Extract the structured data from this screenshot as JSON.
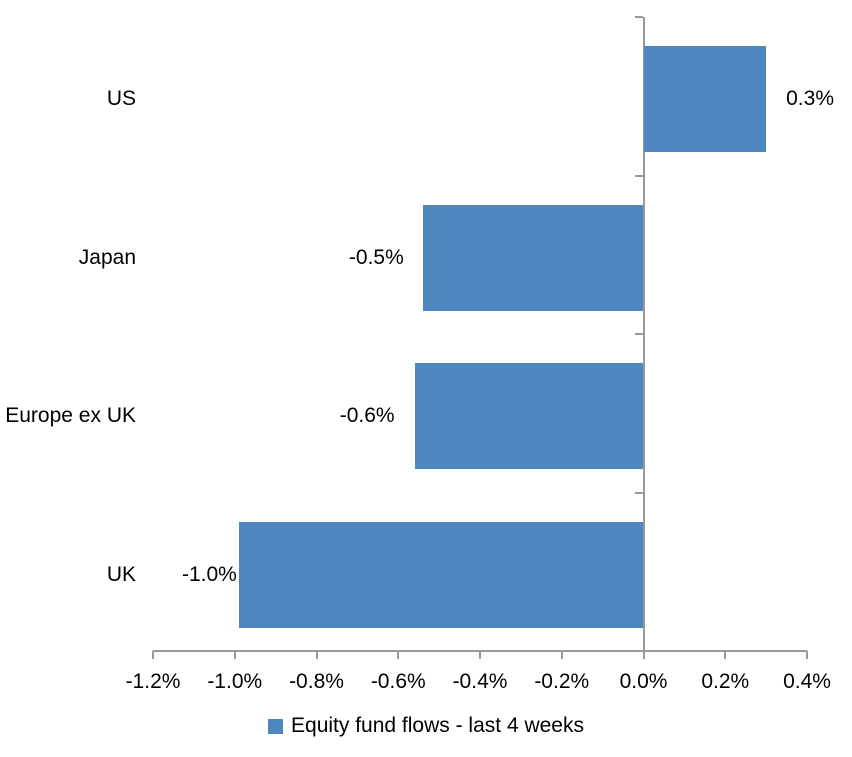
{
  "chart_data": {
    "type": "bar",
    "orientation": "horizontal",
    "categories": [
      "US",
      "Japan",
      "Europe ex UK",
      "UK"
    ],
    "series": [
      {
        "name": "Equity fund flows - last 4 weeks",
        "values": [
          0.3,
          -0.5,
          -0.6,
          -1.0
        ]
      }
    ],
    "data_labels": [
      "0.3%",
      "-0.5%",
      "-0.6%",
      "-1.0%"
    ],
    "bar_render_values": [
      0.3,
      -0.54,
      -0.56,
      -0.99
    ],
    "value_unit": "percent",
    "xlim": [
      -1.2,
      0.4
    ],
    "x_tick_step": 0.2,
    "x_tick_labels": [
      "-1.2%",
      "-1.0%",
      "-0.8%",
      "-0.6%",
      "-0.4%",
      "-0.2%",
      "0.0%",
      "0.2%",
      "0.4%"
    ],
    "grid": false,
    "legend_position": "bottom-center",
    "colors": {
      "bar": "#4E86BE",
      "axis": "#999999",
      "text": "#000000",
      "background": "#FFFFFF"
    }
  }
}
